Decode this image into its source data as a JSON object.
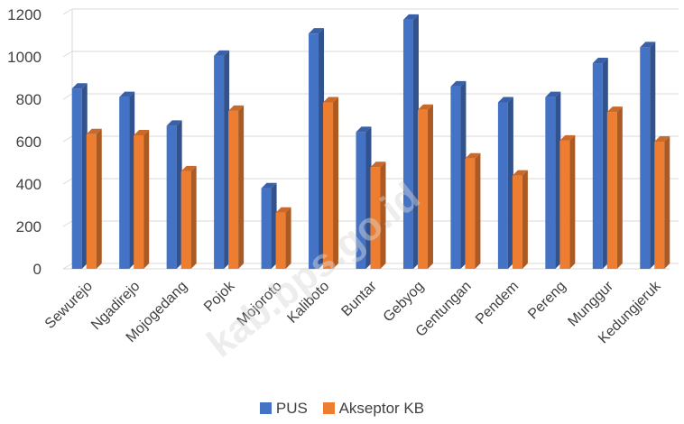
{
  "colors": {
    "pus": "#4472c4",
    "akseptor": "#ed7d31"
  },
  "watermark": "kab.bps.go.id",
  "chart_data": {
    "type": "bar",
    "categories": [
      "Sewurejo",
      "Ngadirejo",
      "Mojogedang",
      "Pojok",
      "Mojoroto",
      "Kaliboto",
      "Buntar",
      "Gebyog",
      "Gentungan",
      "Pendem",
      "Pereng",
      "Munggur",
      "Kedungjeruk"
    ],
    "series": [
      {
        "name": "PUS",
        "values": [
          850,
          810,
          675,
          1005,
          380,
          1110,
          645,
          1175,
          860,
          785,
          810,
          970,
          1045
        ]
      },
      {
        "name": "Akseptor KB",
        "values": [
          635,
          630,
          460,
          745,
          265,
          785,
          480,
          750,
          520,
          440,
          605,
          740,
          600
        ]
      }
    ],
    "yticks": [
      "0",
      "200",
      "400",
      "600",
      "800",
      "1000",
      "1200"
    ],
    "ylim": [
      0,
      1200
    ],
    "grid": true,
    "legend": "bottom"
  }
}
